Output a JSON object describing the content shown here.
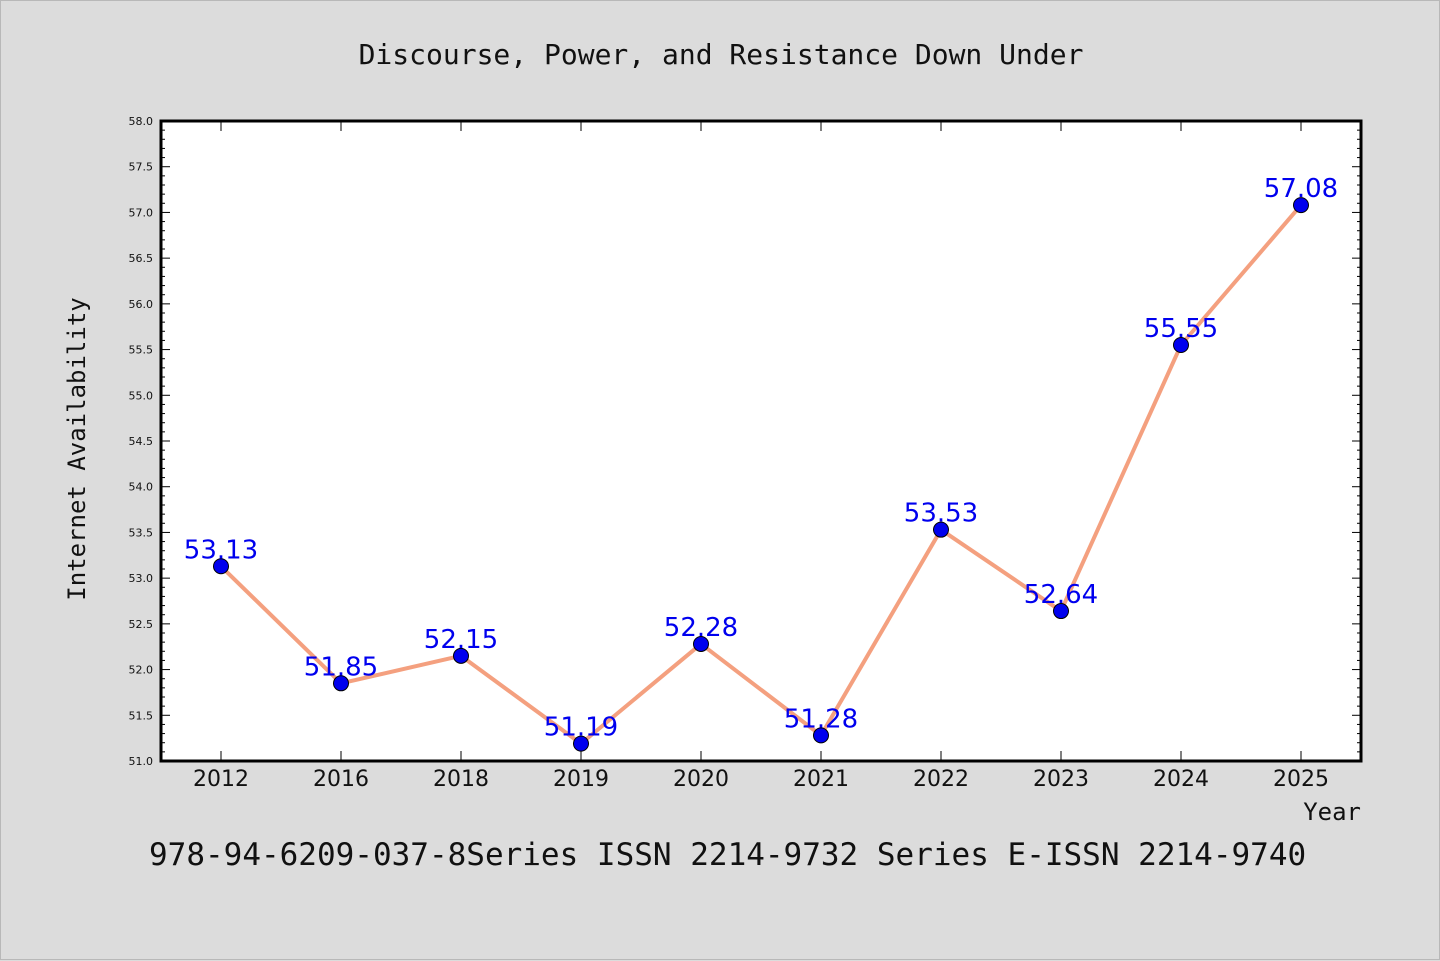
{
  "chart_data": {
    "type": "line",
    "title": "Discourse, Power, and Resistance Down Under",
    "xlabel": "Year",
    "ylabel": "Internet Availability",
    "categories": [
      "2012",
      "2016",
      "2018",
      "2019",
      "2020",
      "2021",
      "2022",
      "2023",
      "2024",
      "2025"
    ],
    "series": [
      {
        "values": [
          53.13,
          51.85,
          52.15,
          51.19,
          52.28,
          51.28,
          53.53,
          52.64,
          55.55,
          57.08
        ]
      }
    ],
    "data_labels": [
      "53.13",
      "51.85",
      "52.15",
      "51.19",
      "52.28",
      "51.28",
      "53.53",
      "52.64",
      "55.55",
      "57.08"
    ],
    "ylim": [
      51.0,
      58.0
    ],
    "yticks": [
      "51.0",
      "51.5",
      "52.0",
      "52.5",
      "53.0",
      "53.5",
      "54.0",
      "54.5",
      "55.0",
      "55.5",
      "56.0",
      "56.5",
      "57.0",
      "57.5",
      "58.0"
    ],
    "grid": false,
    "line_color": "#f4a07f",
    "marker_color": "#0000ee",
    "label_color": "#0000ee"
  },
  "footer": "978-94-6209-037-8Series ISSN 2214-9732 Series E-ISSN 2214-9740"
}
